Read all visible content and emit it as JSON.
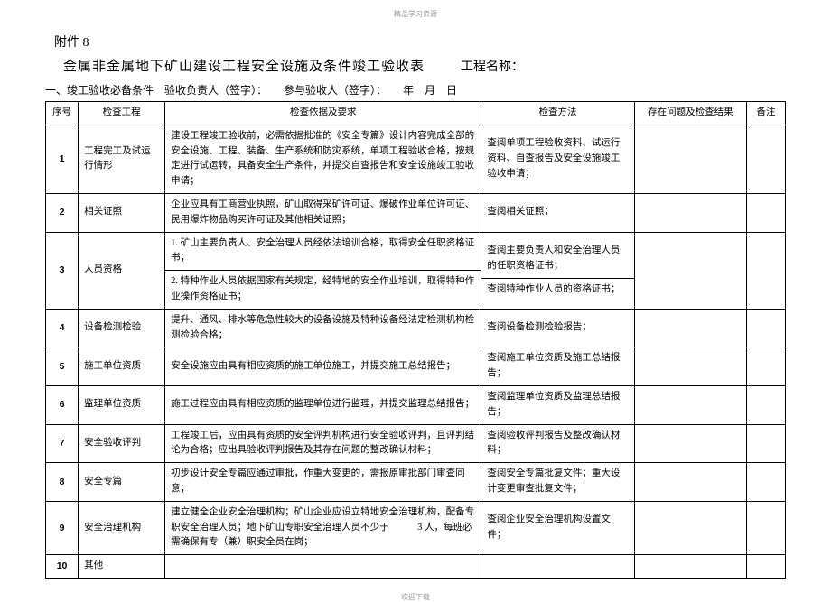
{
  "header_watermark": "精品学习资源",
  "footer_watermark": "欢迎下载",
  "attachment_label": "附件 8",
  "main_title": "金属非金属地下矿山建设工程安全设施及条件竣工验收表",
  "project_name_label": "工程名称：",
  "subtitle": "一、竣工验收必备条件　验收负责人（签字）：　　参与验收人（签字）：　　年　月　日",
  "columns": {
    "seq": "序号",
    "item": "检查工程",
    "basis": "检查依据及要求",
    "method": "检查方法",
    "result": "存在问题及检查结果",
    "note": "备注"
  },
  "rows": [
    {
      "seq": "1",
      "item": "工程完工及试运行情形",
      "basis": "建设工程竣工验收前，必需依据批准的《安全专篇》设计内容完成全部的安全设施、工程、装备、生产系统和防灾系统，单项工程验收合格，按规定进行试运转，具备安全生产条件，并提交自查报告和安全设施竣工验收申请；",
      "method": "查阅单项工程验收资料、试运行资料、自查报告及安全设施竣工验收申请；"
    },
    {
      "seq": "2",
      "item": "相关证照",
      "basis": "企业应具有工商营业执照，矿山取得采矿许可证、爆破作业单位许可证、民用爆炸物品购买许可证及其他相关证照；",
      "method": "查阅相关证照；"
    },
    {
      "seq": "3",
      "item": "人员资格",
      "basis_split": true,
      "basis_top": "1. 矿山主要负责人、安全治理人员经依法培训合格，取得安全任职资格证书；",
      "basis_bottom": "2. 特种作业人员依据国家有关规定，经特地的安全作业培训，取得特种作业操作资格证书；",
      "method_split": true,
      "method_top": "查阅主要负责人和安全治理人员的任职资格证书；",
      "method_bottom": "查阅特种作业人员的资格证书；"
    },
    {
      "seq": "4",
      "item": "设备检测检验",
      "basis": "提升、通风、排水等危急性较大的设备设施及特种设备经法定检测机构检测检验合格；",
      "method": "查阅设备检测检验报告；"
    },
    {
      "seq": "5",
      "item": "施工单位资质",
      "basis": "安全设施应由具有相应资质的施工单位施工，并提交施工总结报告；",
      "method": "查阅施工单位资质及施工总结报告；"
    },
    {
      "seq": "6",
      "item": "监理单位资质",
      "basis": "施工过程应由具有相应资质的监理单位进行监理，并提交监理总结报告；",
      "method": "查阅监理单位资质及监理总结报告；"
    },
    {
      "seq": "7",
      "item": "安全验收评判",
      "basis": "工程竣工后，应由具有资质的安全评判机构进行安全验收评判，且评判结论为合格；应出具验收评判报告及其存在问题的整改确认材料；",
      "method": "查阅验收评判报告及整改确认材料；"
    },
    {
      "seq": "8",
      "item": "安全专篇",
      "basis": "初步设计安全专篇应通过审批，作重大变更的，需报原审批部门审查同意；",
      "method": "查阅安全专篇批复文件；重大设计变更审查批复文件；"
    },
    {
      "seq": "9",
      "item": "安全治理机构",
      "basis": "建立健全企业安全治理机构；矿山企业应设立特地安全治理机构，配备专职安全治理人员；地下矿山专职安全治理人员不少于　　　3 人，每班必需确保有专（兼）职安全员在岗；",
      "method": "查阅企业安全治理机构设置文件；"
    },
    {
      "seq": "10",
      "item": "其他",
      "basis": "",
      "method": ""
    }
  ]
}
